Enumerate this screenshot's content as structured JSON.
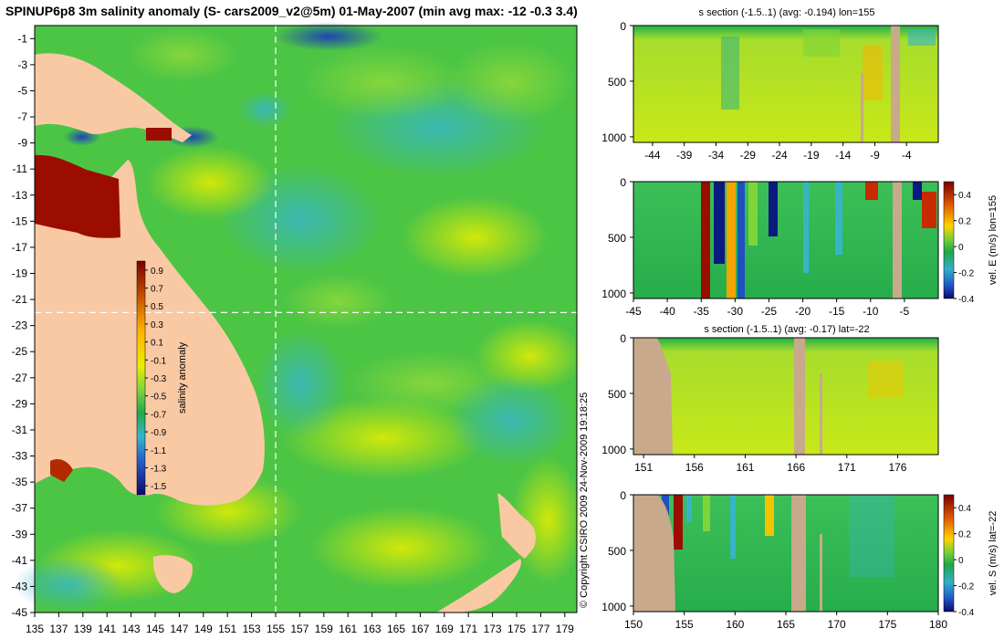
{
  "title": "SPINUP6p8 3m salinity anomaly (S- cars2009_v2@5m) 01-May-2007 (min avg max: -12 -0.3 3.4)",
  "copyright": "© Copyright CSIRO 2009   24-Nov-2009 19:18:25",
  "colors": {
    "land": "#f9c9a4",
    "section_land": "#c8a98c",
    "guide": "#ffffff"
  },
  "chart_data": [
    {
      "type": "heatmap",
      "name": "salinity-anomaly-map",
      "title": "SPINUP6p8 3m salinity anomaly (S- cars2009_v2@5m) 01-May-2007 (min avg max: -12 -0.3 3.4)",
      "xlim": [
        135,
        180
      ],
      "ylim": [
        -45,
        0
      ],
      "x_ticks": [
        "135",
        "137",
        "139",
        "141",
        "143",
        "145",
        "147",
        "149",
        "151",
        "153",
        "155",
        "157",
        "159",
        "161",
        "163",
        "165",
        "167",
        "169",
        "171",
        "173",
        "175",
        "177",
        "179"
      ],
      "y_ticks": [
        "-1",
        "-3",
        "-5",
        "-7",
        "-9",
        "-11",
        "-13",
        "-15",
        "-17",
        "-19",
        "-21",
        "-23",
        "-25",
        "-27",
        "-29",
        "-31",
        "-33",
        "-35",
        "-37",
        "-39",
        "-41",
        "-43",
        "-45"
      ],
      "guides": {
        "lon": 155,
        "lat": -22
      },
      "colorbar": {
        "label": "salinity anomaly",
        "range": [
          -1.6,
          1.0
        ],
        "ticks": [
          "0.9",
          "0.7",
          "0.5",
          "0.3",
          "0.1",
          "-0.1",
          "-0.3",
          "-0.5",
          "-0.7",
          "-0.9",
          "-1.1",
          "-1.3",
          "-1.5"
        ]
      }
    },
    {
      "type": "heatmap",
      "name": "salinity-section-lon155",
      "title": "s section (-1.5..1) (avg: -0.194) lon=155",
      "xlim": [
        -47,
        1
      ],
      "ylim": [
        0,
        1050
      ],
      "x_ticks": [
        "-44",
        "-39",
        "-34",
        "-29",
        "-24",
        "-19",
        "-14",
        "-9",
        "-4"
      ],
      "y_ticks": [
        "0",
        "500",
        "1000"
      ]
    },
    {
      "type": "heatmap",
      "name": "velocity-east-lon155",
      "title": "",
      "xlim": [
        -45,
        0
      ],
      "ylim": [
        0,
        1050
      ],
      "x_ticks": [
        "-45",
        "-40",
        "-35",
        "-30",
        "-25",
        "-20",
        "-15",
        "-10",
        "-5"
      ],
      "y_ticks": [
        "0",
        "500",
        "1000"
      ],
      "colorbar": {
        "label": "vel. E (m/s) lon=155",
        "range": [
          -0.4,
          0.5
        ],
        "ticks": [
          "0.4",
          "0.2",
          "0",
          "-0.2",
          "-0.4"
        ]
      }
    },
    {
      "type": "heatmap",
      "name": "salinity-section-lat-22",
      "title": "s section (-1.5..1) (avg: -0.17) lat=-22",
      "xlim": [
        150,
        180
      ],
      "ylim": [
        0,
        1050
      ],
      "x_ticks": [
        "151",
        "156",
        "161",
        "166",
        "171",
        "176"
      ],
      "y_ticks": [
        "0",
        "500",
        "1000"
      ]
    },
    {
      "type": "heatmap",
      "name": "velocity-south-lat-22",
      "title": "",
      "xlim": [
        150,
        180
      ],
      "ylim": [
        0,
        1050
      ],
      "x_ticks": [
        "150",
        "155",
        "160",
        "165",
        "170",
        "175",
        "180"
      ],
      "y_ticks": [
        "0",
        "500",
        "1000"
      ],
      "colorbar": {
        "label": "vel. S (m/s) lat=-22",
        "range": [
          -0.4,
          0.5
        ],
        "ticks": [
          "0.4",
          "0.2",
          "0",
          "-0.2",
          "-0.4"
        ]
      }
    }
  ]
}
